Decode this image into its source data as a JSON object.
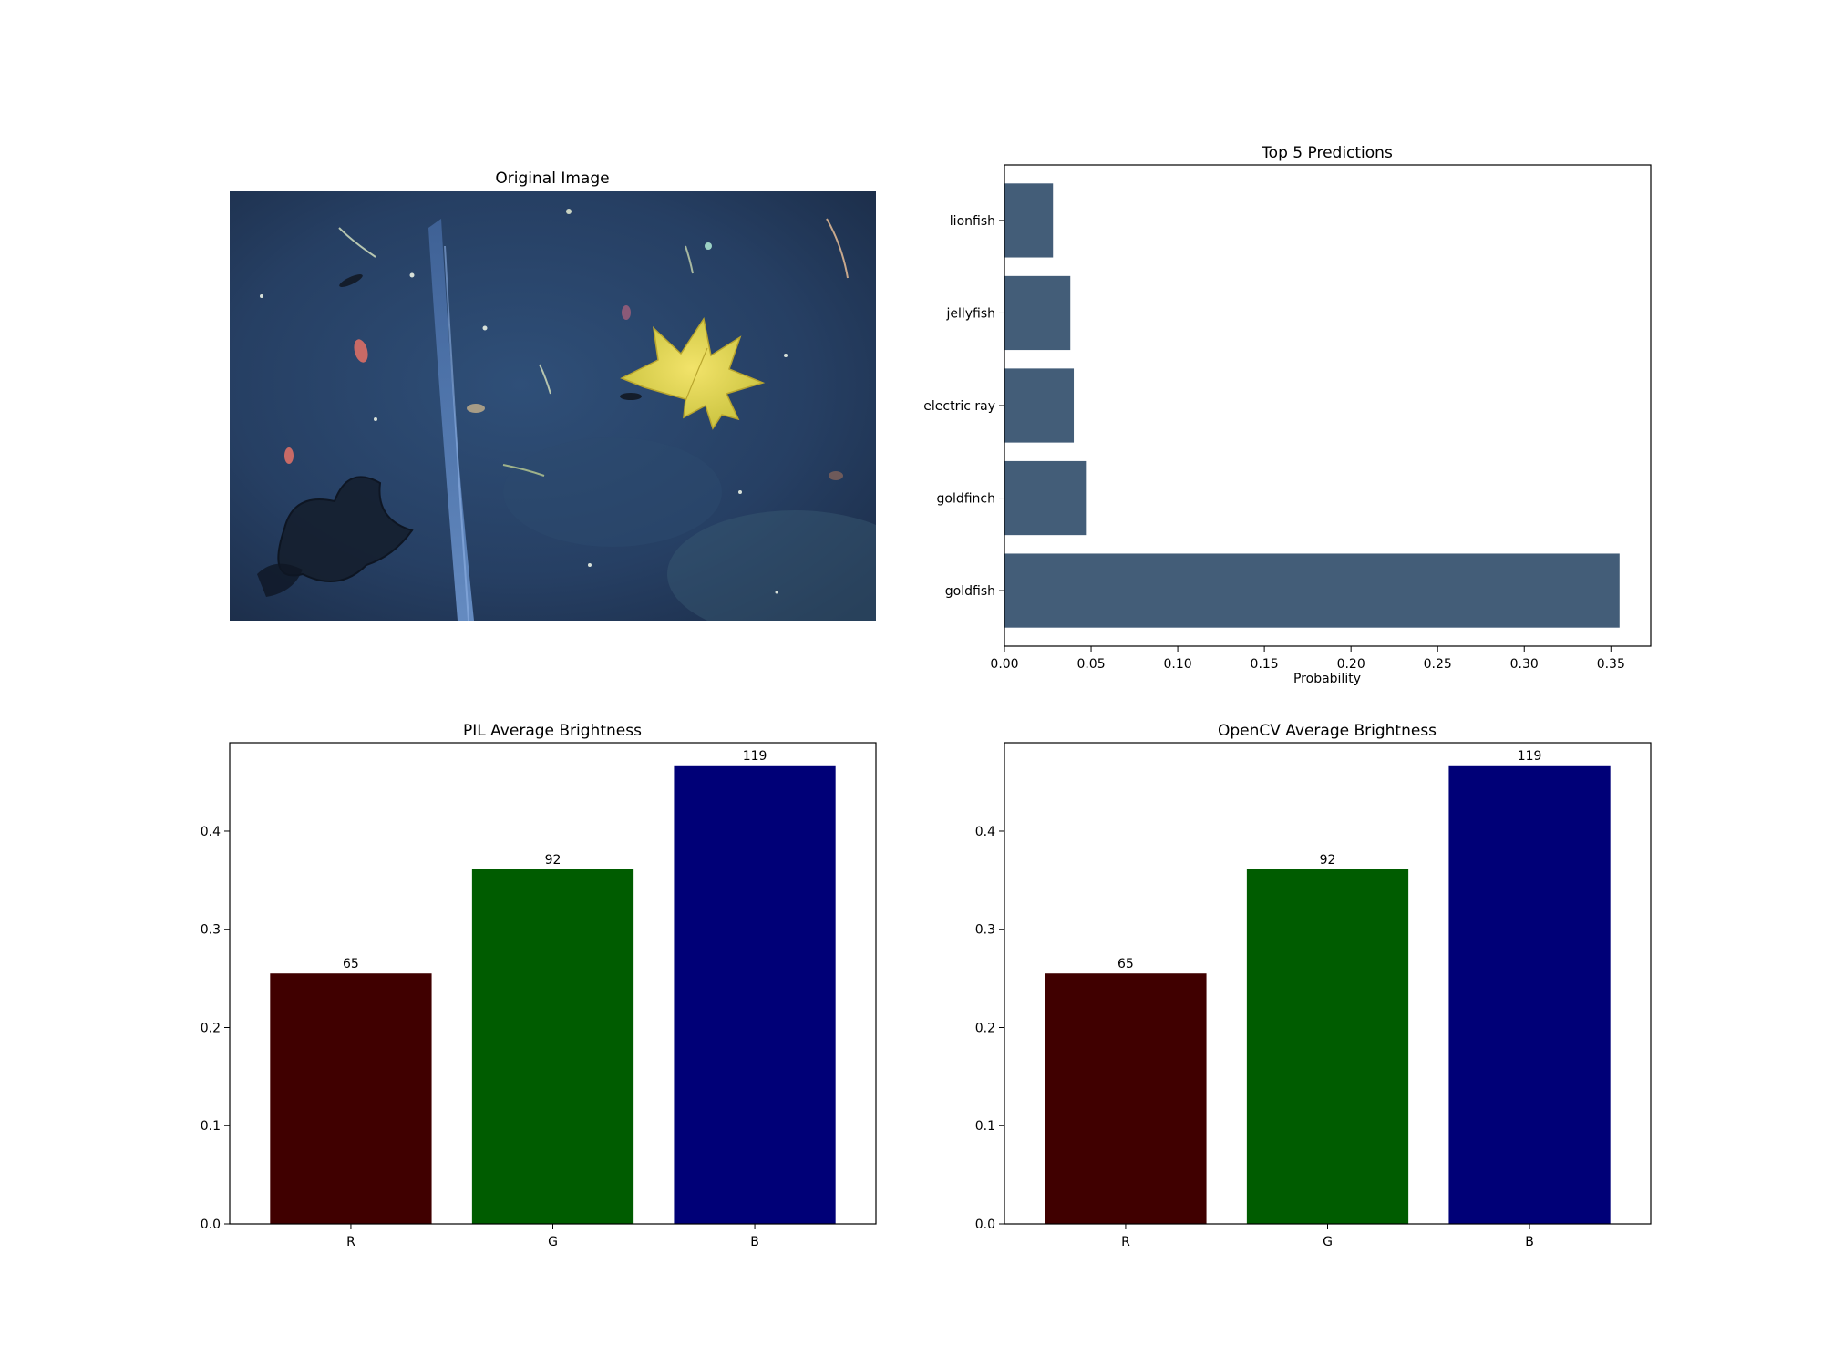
{
  "image_panel": {
    "title": "Original Image"
  },
  "chart_data": [
    {
      "id": "predictions",
      "type": "bar",
      "orientation": "horizontal",
      "title": "Top 5 Predictions",
      "xlabel": "Probability",
      "ylabel": "",
      "xlim": [
        0,
        0.373
      ],
      "xticks": [
        "0.00",
        "0.05",
        "0.10",
        "0.15",
        "0.20",
        "0.25",
        "0.30",
        "0.35"
      ],
      "categories": [
        "goldfish",
        "goldfinch",
        "electric ray",
        "jellyfish",
        "lionfish"
      ],
      "values": [
        0.355,
        0.047,
        0.04,
        0.038,
        0.028
      ],
      "bar_color": "#435d78",
      "grid": false
    },
    {
      "id": "pil",
      "type": "bar",
      "title": "PIL Average Brightness",
      "xlabel": "",
      "ylabel": "",
      "ylim": [
        0,
        0.49
      ],
      "yticks": [
        "0.0",
        "0.1",
        "0.2",
        "0.3",
        "0.4"
      ],
      "categories": [
        "R",
        "G",
        "B"
      ],
      "values": [
        0.255,
        0.361,
        0.467
      ],
      "data_labels": [
        "65",
        "92",
        "119"
      ],
      "colors": [
        "#400000",
        "#005c00",
        "#000077"
      ],
      "grid": false
    },
    {
      "id": "opencv",
      "type": "bar",
      "title": "OpenCV Average Brightness",
      "xlabel": "",
      "ylabel": "",
      "ylim": [
        0,
        0.49
      ],
      "yticks": [
        "0.0",
        "0.1",
        "0.2",
        "0.3",
        "0.4"
      ],
      "categories": [
        "R",
        "G",
        "B"
      ],
      "values": [
        0.255,
        0.361,
        0.467
      ],
      "data_labels": [
        "65",
        "92",
        "119"
      ],
      "colors": [
        "#400000",
        "#005c00",
        "#000077"
      ],
      "grid": false
    }
  ]
}
